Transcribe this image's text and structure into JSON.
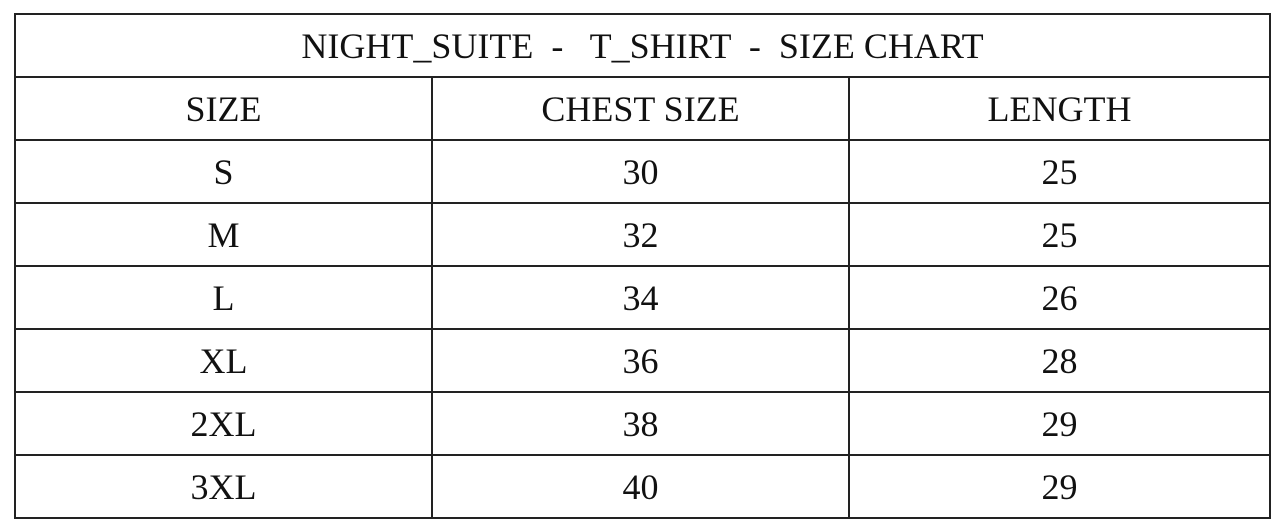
{
  "title": "NIGHT_SUITE  -   T_SHIRT  -  SIZE CHART",
  "columns": [
    "SIZE",
    "CHEST SIZE",
    "LENGTH"
  ],
  "rows": [
    [
      "S",
      "30",
      "25"
    ],
    [
      "M",
      "32",
      "25"
    ],
    [
      "L",
      "34",
      "26"
    ],
    [
      "XL",
      "36",
      "28"
    ],
    [
      "2XL",
      "38",
      "29"
    ],
    [
      "3XL",
      "40",
      "29"
    ]
  ]
}
